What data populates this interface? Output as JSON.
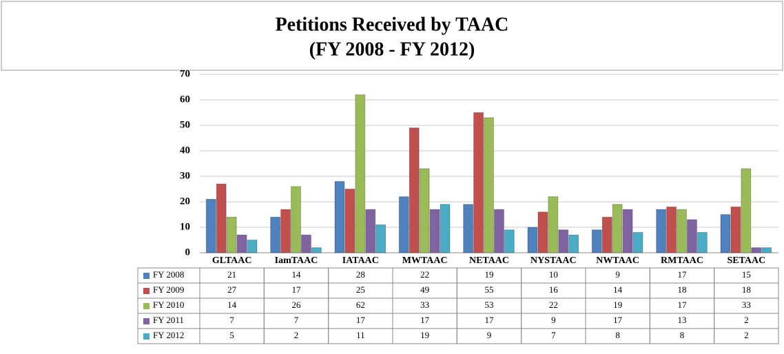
{
  "chart_data": {
    "type": "bar",
    "title": "Petitions Received by TAAC",
    "subtitle": "(FY 2008 - FY 2012)",
    "categories": [
      "GLTAAC",
      "IamTAAC",
      "IATAAC",
      "MWTAAC",
      "NETAAC",
      "NYSTAAC",
      "NWTAAC",
      "RMTAAC",
      "SETAAC"
    ],
    "series": [
      {
        "name": "FY 2008",
        "color": "#4f81bd",
        "values": [
          21,
          14,
          28,
          22,
          19,
          10,
          9,
          17,
          15
        ]
      },
      {
        "name": "FY 2009",
        "color": "#c0504d",
        "values": [
          27,
          17,
          25,
          49,
          55,
          16,
          14,
          18,
          18
        ]
      },
      {
        "name": "FY 2010",
        "color": "#9bbb59",
        "values": [
          14,
          26,
          62,
          33,
          53,
          22,
          19,
          17,
          33
        ]
      },
      {
        "name": "FY 2011",
        "color": "#8064a2",
        "values": [
          7,
          7,
          17,
          17,
          17,
          9,
          17,
          13,
          2
        ]
      },
      {
        "name": "FY 2012",
        "color": "#4bacc6",
        "values": [
          5,
          2,
          11,
          19,
          9,
          7,
          8,
          8,
          2
        ]
      }
    ],
    "ylim": [
      0,
      70
    ],
    "yticks": [
      0,
      10,
      20,
      30,
      40,
      50,
      60,
      70
    ],
    "grid": true
  }
}
